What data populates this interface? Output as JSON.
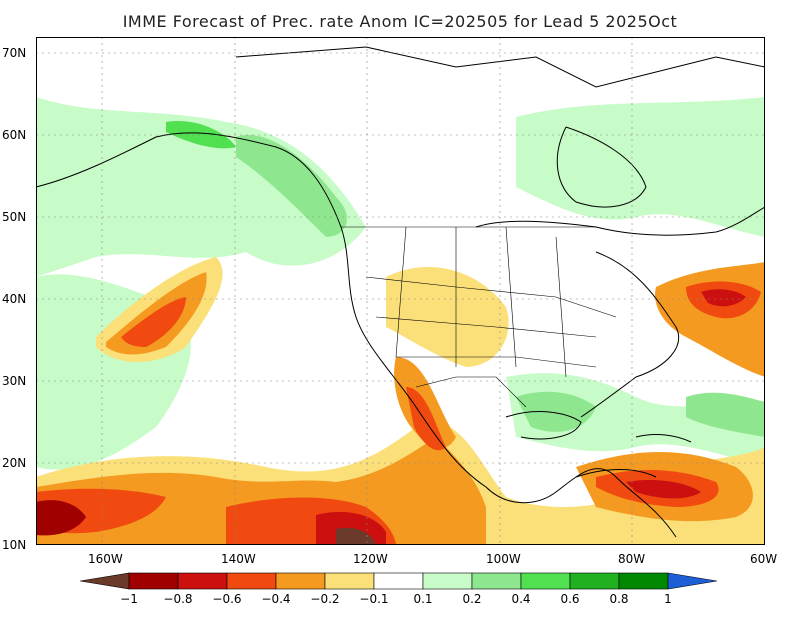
{
  "title": "IMME Forecast of Prec. rate Anom IC=202505 for Lead 5 2025Oct",
  "map": {
    "type": "contour-fill",
    "variable": "Prec. rate anomaly",
    "projection": "lat-lon",
    "extent": {
      "lon": [
        -170,
        -60
      ],
      "lat": [
        10,
        72
      ]
    },
    "grid": "dotted",
    "lat_ticks": [
      "10N",
      "20N",
      "30N",
      "40N",
      "50N",
      "60N",
      "70N"
    ],
    "lon_ticks": [
      "160W",
      "140W",
      "120W",
      "100W",
      "80W",
      "60W"
    ]
  },
  "colorbar": {
    "labels": [
      "−1",
      "−0.8",
      "−0.6",
      "−0.4",
      "−0.2",
      "−0.1",
      "0.1",
      "0.2",
      "0.4",
      "0.6",
      "0.8",
      "1"
    ],
    "colors": [
      "#6b3a2a",
      "#a00000",
      "#cc1010",
      "#f04a10",
      "#f59a20",
      "#fbe07a",
      "#ffffff",
      "#c7fbc7",
      "#8ee68e",
      "#50e050",
      "#20b020",
      "#008800",
      "#1e5fd8"
    ]
  }
}
